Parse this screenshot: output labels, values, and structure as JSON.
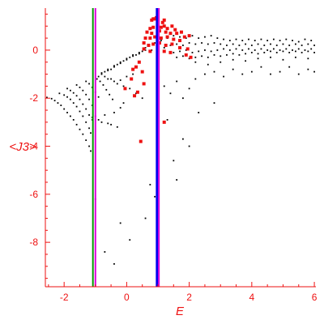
{
  "chart_data": {
    "type": "scatter",
    "title": "",
    "xlabel": "E",
    "ylabel": "<J3>",
    "xlim": [
      -2.6,
      6.05
    ],
    "ylim": [
      -9.85,
      1.75
    ],
    "x_ticks": [
      -2,
      0,
      2,
      4,
      6
    ],
    "x_tick_labels": [
      "-2",
      "0",
      "2",
      "4",
      "6"
    ],
    "y_ticks": [
      -8,
      -6,
      -4,
      -2,
      0
    ],
    "y_tick_labels": [
      "-8",
      "-6",
      "-4",
      "-2",
      "0"
    ],
    "grid": false,
    "colors": {
      "axes": "#ee1111",
      "series_black": "#000000",
      "series_red": "#ee1111",
      "vline_green": "#009900",
      "vline_magenta": "#dd00dd",
      "vline_blue": "#0000ee"
    },
    "vertical_lines": [
      {
        "x": -1.08,
        "color": "#009900"
      },
      {
        "x": -1.0,
        "color": "#dd00dd"
      },
      {
        "x": 0.97,
        "color": "#0000ee"
      },
      {
        "x": 1.03,
        "color": "#dd00dd"
      }
    ],
    "series": [
      {
        "marker": "small-dot",
        "color": "#000000",
        "points": [
          [
            -2.55,
            -1.97
          ],
          [
            -2.4,
            -2.02
          ],
          [
            -2.3,
            -2.1
          ],
          [
            -2.2,
            -2.2
          ],
          [
            -2.1,
            -2.3
          ],
          [
            -2.0,
            -2.45
          ],
          [
            -1.9,
            -2.6
          ],
          [
            -1.8,
            -2.75
          ],
          [
            -1.7,
            -2.9
          ],
          [
            -1.6,
            -3.1
          ],
          [
            -1.5,
            -3.3
          ],
          [
            -1.4,
            -3.5
          ],
          [
            -1.3,
            -3.75
          ],
          [
            -1.2,
            -4.0
          ],
          [
            -1.15,
            -4.2
          ],
          [
            -2.15,
            -1.8
          ],
          [
            -2.0,
            -1.87
          ],
          [
            -1.9,
            -1.95
          ],
          [
            -1.8,
            -2.05
          ],
          [
            -1.7,
            -2.2
          ],
          [
            -1.6,
            -2.35
          ],
          [
            -1.5,
            -2.55
          ],
          [
            -1.4,
            -2.75
          ],
          [
            -1.3,
            -3.0
          ],
          [
            -1.2,
            -3.25
          ],
          [
            -1.15,
            -3.45
          ],
          [
            -1.9,
            -1.6
          ],
          [
            -1.8,
            -1.68
          ],
          [
            -1.7,
            -1.78
          ],
          [
            -1.6,
            -1.9
          ],
          [
            -1.5,
            -2.05
          ],
          [
            -1.4,
            -2.25
          ],
          [
            -1.3,
            -2.45
          ],
          [
            -1.2,
            -2.7
          ],
          [
            -1.1,
            -2.9
          ],
          [
            -1.6,
            -1.45
          ],
          [
            -1.5,
            -1.55
          ],
          [
            -1.4,
            -1.68
          ],
          [
            -1.3,
            -1.85
          ],
          [
            -1.2,
            -2.05
          ],
          [
            -1.1,
            -2.3
          ],
          [
            -1.3,
            -1.3
          ],
          [
            -1.2,
            -1.4
          ],
          [
            -1.1,
            -1.55
          ],
          [
            -1.0,
            -1.75
          ],
          [
            -0.9,
            -1.95
          ],
          [
            -0.95,
            -1.2
          ],
          [
            -0.85,
            -1.3
          ],
          [
            -0.75,
            -1.45
          ],
          [
            -0.65,
            -1.65
          ],
          [
            -0.55,
            -1.85
          ],
          [
            -0.45,
            -2.05
          ],
          [
            -1.1,
            -2.8
          ],
          [
            -1.0,
            -2.75
          ],
          [
            -0.9,
            -2.9
          ],
          [
            -0.8,
            -3.0
          ],
          [
            -0.7,
            -2.7
          ],
          [
            -0.6,
            -3.05
          ],
          [
            -0.5,
            -3.1
          ],
          [
            -0.4,
            -2.6
          ],
          [
            -0.3,
            -3.2
          ],
          [
            -0.2,
            -2.4
          ],
          [
            -0.1,
            -2.2
          ],
          [
            -0.9,
            -1.1
          ],
          [
            -0.8,
            -1.0
          ],
          [
            -0.7,
            -0.9
          ],
          [
            -0.6,
            -0.85
          ],
          [
            -0.5,
            -0.8
          ],
          [
            -0.4,
            -0.7
          ],
          [
            -0.3,
            -0.6
          ],
          [
            -0.2,
            -0.55
          ],
          [
            -0.1,
            -0.45
          ],
          [
            0.0,
            -0.4
          ],
          [
            0.1,
            -0.3
          ],
          [
            0.2,
            -0.25
          ],
          [
            0.3,
            -0.2
          ],
          [
            0.4,
            -0.15
          ],
          [
            0.5,
            -0.05
          ],
          [
            -0.8,
            -0.95
          ],
          [
            -0.6,
            -0.8
          ],
          [
            -0.4,
            -0.65
          ],
          [
            -0.2,
            -0.5
          ],
          [
            0.0,
            -0.35
          ],
          [
            0.2,
            -0.2
          ],
          [
            0.4,
            -0.1
          ],
          [
            0.6,
            0.0
          ],
          [
            -0.5,
            -1.2
          ],
          [
            -0.3,
            -1.4
          ],
          [
            -0.1,
            -1.5
          ],
          [
            0.1,
            -1.6
          ],
          [
            0.3,
            -1.8
          ],
          [
            0.5,
            -2.0
          ],
          [
            -0.7,
            -1.1
          ],
          [
            -0.6,
            -1.2
          ],
          [
            -0.4,
            -1.3
          ],
          [
            -0.2,
            -1.25
          ],
          [
            0.0,
            -1.1
          ],
          [
            0.2,
            -1.0
          ],
          [
            -1.0,
            -6.2
          ],
          [
            -0.7,
            -8.4
          ],
          [
            -0.4,
            -8.9
          ],
          [
            -0.2,
            -7.2
          ],
          [
            0.1,
            -7.9
          ],
          [
            0.6,
            -7.0
          ],
          [
            0.75,
            -5.6
          ],
          [
            0.9,
            -6.1
          ],
          [
            1.3,
            -2.9
          ],
          [
            1.5,
            -4.6
          ],
          [
            1.6,
            -5.4
          ],
          [
            1.8,
            -3.7
          ],
          [
            2.0,
            -4.0
          ],
          [
            2.3,
            -2.6
          ],
          [
            2.8,
            -2.2
          ],
          [
            1.2,
            -1.5
          ],
          [
            1.4,
            -1.8
          ],
          [
            1.6,
            -1.3
          ],
          [
            1.8,
            -2.0
          ],
          [
            2.0,
            -1.6
          ],
          [
            2.2,
            -1.2
          ],
          [
            2.5,
            -1.0
          ],
          [
            2.8,
            -0.9
          ],
          [
            3.1,
            -1.1
          ],
          [
            3.4,
            -0.8
          ],
          [
            3.7,
            -1.0
          ],
          [
            4.0,
            -0.9
          ],
          [
            4.3,
            -0.7
          ],
          [
            4.6,
            -1.0
          ],
          [
            4.9,
            -0.9
          ],
          [
            5.2,
            -0.7
          ],
          [
            5.5,
            -1.0
          ],
          [
            5.8,
            -0.8
          ],
          [
            6.0,
            -0.9
          ],
          [
            1.3,
            0.5
          ],
          [
            1.5,
            0.6
          ],
          [
            1.7,
            0.55
          ],
          [
            1.9,
            0.5
          ],
          [
            2.1,
            0.6
          ],
          [
            2.3,
            0.5
          ],
          [
            2.5,
            0.55
          ],
          [
            2.7,
            0.6
          ],
          [
            2.9,
            0.5
          ],
          [
            3.1,
            0.45
          ],
          [
            3.3,
            0.4
          ],
          [
            3.5,
            0.45
          ],
          [
            3.7,
            0.4
          ],
          [
            3.9,
            0.45
          ],
          [
            4.1,
            0.4
          ],
          [
            4.3,
            0.45
          ],
          [
            4.5,
            0.4
          ],
          [
            4.7,
            0.45
          ],
          [
            4.9,
            0.4
          ],
          [
            5.1,
            0.45
          ],
          [
            5.3,
            0.4
          ],
          [
            5.5,
            0.35
          ],
          [
            5.7,
            0.45
          ],
          [
            5.9,
            0.4
          ],
          [
            1.4,
            0.2
          ],
          [
            1.6,
            0.25
          ],
          [
            1.8,
            0.2
          ],
          [
            2.0,
            0.3
          ],
          [
            2.2,
            0.25
          ],
          [
            2.4,
            0.3
          ],
          [
            2.6,
            0.25
          ],
          [
            2.8,
            0.3
          ],
          [
            3.0,
            0.25
          ],
          [
            3.2,
            0.2
          ],
          [
            3.4,
            0.25
          ],
          [
            3.6,
            0.2
          ],
          [
            3.8,
            0.25
          ],
          [
            4.0,
            0.2
          ],
          [
            4.2,
            0.25
          ],
          [
            4.4,
            0.2
          ],
          [
            4.6,
            0.25
          ],
          [
            4.8,
            0.2
          ],
          [
            5.0,
            0.25
          ],
          [
            5.2,
            0.2
          ],
          [
            5.4,
            0.25
          ],
          [
            5.6,
            0.2
          ],
          [
            5.8,
            0.25
          ],
          [
            6.0,
            0.2
          ],
          [
            1.5,
            -0.1
          ],
          [
            1.7,
            -0.05
          ],
          [
            1.9,
            0.0
          ],
          [
            2.1,
            -0.1
          ],
          [
            2.3,
            -0.05
          ],
          [
            2.5,
            0.0
          ],
          [
            2.7,
            -0.05
          ],
          [
            2.9,
            0.0
          ],
          [
            3.1,
            0.05
          ],
          [
            3.3,
            0.0
          ],
          [
            3.5,
            0.05
          ],
          [
            3.7,
            0.0
          ],
          [
            3.9,
            0.05
          ],
          [
            4.1,
            0.0
          ],
          [
            4.3,
            0.05
          ],
          [
            4.5,
            0.0
          ],
          [
            4.7,
            0.05
          ],
          [
            4.9,
            0.0
          ],
          [
            5.1,
            0.05
          ],
          [
            5.3,
            0.0
          ],
          [
            5.5,
            0.05
          ],
          [
            5.7,
            0.0
          ],
          [
            5.9,
            0.05
          ],
          [
            1.6,
            -0.3
          ],
          [
            1.8,
            -0.25
          ],
          [
            2.0,
            -0.35
          ],
          [
            2.2,
            -0.3
          ],
          [
            2.4,
            -0.25
          ],
          [
            2.6,
            -0.3
          ],
          [
            2.8,
            -0.2
          ],
          [
            3.0,
            -0.25
          ],
          [
            3.2,
            -0.2
          ],
          [
            3.4,
            -0.15
          ],
          [
            3.6,
            -0.2
          ],
          [
            3.8,
            -0.15
          ],
          [
            4.0,
            -0.1
          ],
          [
            4.2,
            -0.15
          ],
          [
            4.4,
            -0.1
          ],
          [
            4.6,
            -0.05
          ],
          [
            4.8,
            -0.1
          ],
          [
            5.0,
            -0.05
          ],
          [
            5.2,
            -0.1
          ],
          [
            5.4,
            -0.05
          ],
          [
            5.6,
            -0.1
          ],
          [
            5.8,
            -0.05
          ],
          [
            6.0,
            -0.1
          ],
          [
            2.2,
            -0.5
          ],
          [
            2.6,
            -0.6
          ],
          [
            3.0,
            -0.5
          ],
          [
            3.4,
            -0.4
          ],
          [
            3.8,
            -0.45
          ],
          [
            4.2,
            -0.35
          ],
          [
            4.6,
            -0.3
          ],
          [
            5.0,
            -0.4
          ],
          [
            5.4,
            -0.3
          ],
          [
            5.8,
            -0.35
          ],
          [
            0.6,
            0.1
          ],
          [
            0.7,
            0.2
          ],
          [
            0.8,
            0.0
          ],
          [
            0.9,
            0.3
          ],
          [
            1.1,
            0.4
          ],
          [
            1.2,
            0.1
          ]
        ]
      },
      {
        "marker": "red-square",
        "color": "#ee1111",
        "points": [
          [
            0.85,
            1.3
          ],
          [
            0.9,
            1.3
          ],
          [
            0.95,
            1.35
          ],
          [
            1.0,
            1.3
          ],
          [
            0.8,
            1.25
          ],
          [
            1.2,
            1.25
          ],
          [
            1.15,
            1.15
          ],
          [
            0.75,
            0.9
          ],
          [
            0.85,
            0.95
          ],
          [
            1.0,
            1.0
          ],
          [
            1.1,
            0.95
          ],
          [
            1.2,
            1.0
          ],
          [
            1.3,
            0.9
          ],
          [
            1.45,
            1.0
          ],
          [
            1.55,
            0.85
          ],
          [
            0.65,
            0.75
          ],
          [
            0.8,
            0.7
          ],
          [
            1.05,
            0.8
          ],
          [
            1.25,
            0.75
          ],
          [
            1.4,
            0.7
          ],
          [
            1.6,
            0.7
          ],
          [
            1.75,
            0.75
          ],
          [
            0.6,
            0.5
          ],
          [
            0.75,
            0.5
          ],
          [
            0.9,
            0.55
          ],
          [
            1.1,
            0.5
          ],
          [
            1.3,
            0.55
          ],
          [
            1.5,
            0.45
          ],
          [
            1.7,
            0.4
          ],
          [
            1.85,
            0.55
          ],
          [
            2.0,
            0.6
          ],
          [
            0.55,
            0.3
          ],
          [
            0.7,
            0.2
          ],
          [
            0.85,
            0.25
          ],
          [
            1.05,
            0.3
          ],
          [
            1.25,
            0.2
          ],
          [
            1.45,
            0.25
          ],
          [
            1.7,
            0.1
          ],
          [
            1.95,
            0.05
          ],
          [
            0.55,
            0.05
          ],
          [
            0.75,
            -0.05
          ],
          [
            1.0,
            0.0
          ],
          [
            1.2,
            -0.05
          ],
          [
            1.4,
            -0.1
          ],
          [
            1.9,
            -0.2
          ],
          [
            2.05,
            -0.3
          ],
          [
            0.4,
            -0.5
          ],
          [
            0.3,
            -0.7
          ],
          [
            0.2,
            -0.8
          ],
          [
            0.5,
            -0.9
          ],
          [
            0.55,
            -1.4
          ],
          [
            0.15,
            -1.2
          ],
          [
            -0.05,
            -1.6
          ],
          [
            0.35,
            -1.75
          ],
          [
            0.25,
            -1.9
          ],
          [
            1.2,
            -3.0
          ],
          [
            0.45,
            -3.8
          ]
        ]
      }
    ]
  }
}
